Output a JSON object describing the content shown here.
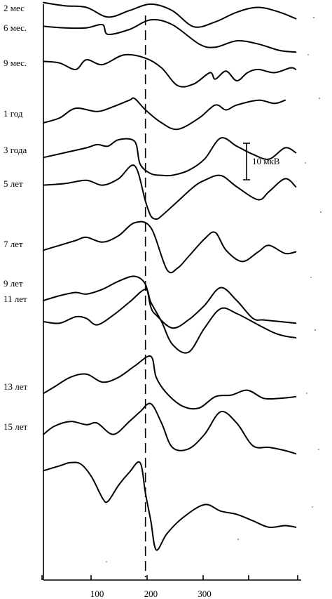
{
  "chart_data": {
    "type": "line",
    "title": "",
    "xlabel": "",
    "ylabel": "",
    "x_range": [
      0,
      480
    ],
    "x_ticks": [
      100,
      200,
      300
    ],
    "x_tick_labels": [
      "100",
      "200",
      "300"
    ],
    "reference_line_x": 190,
    "scale_bar": {
      "label": "10 мкВ",
      "value": 10
    },
    "grid": false,
    "legend": "none",
    "stroke_color": "#000000",
    "series": [
      {
        "name": "2 мес",
        "label": "2 мес",
        "x": [
          0,
          40,
          80,
          120,
          160,
          200,
          240,
          280,
          320,
          360,
          400,
          440,
          470
        ],
        "y": [
          16,
          12,
          10,
          -2,
          6,
          14,
          6,
          -14,
          -8,
          4,
          10,
          4,
          -4
        ]
      },
      {
        "name": "6 мес.",
        "label": "6 мес.",
        "x": [
          0,
          40,
          80,
          110,
          120,
          160,
          200,
          240,
          290,
          320,
          360,
          400,
          440,
          470
        ],
        "y": [
          4,
          2,
          2,
          6,
          -6,
          0,
          12,
          6,
          -18,
          -22,
          -14,
          -18,
          -26,
          -28
        ]
      },
      {
        "name": "9 мес.",
        "label": "9 мес.",
        "x": [
          0,
          30,
          60,
          80,
          110,
          150,
          190,
          220,
          250,
          280,
          310,
          320,
          340,
          360,
          380,
          400,
          430,
          460,
          470
        ],
        "y": [
          4,
          2,
          -6,
          6,
          0,
          12,
          8,
          -4,
          -26,
          -24,
          -10,
          -18,
          -8,
          -20,
          -10,
          -6,
          -10,
          -4,
          -6
        ]
      },
      {
        "name": "1 год",
        "label": "1 год",
        "x": [
          0,
          30,
          60,
          100,
          130,
          160,
          170,
          190,
          220,
          250,
          290,
          320,
          340,
          360,
          400,
          430,
          450
        ],
        "y": [
          -6,
          0,
          12,
          8,
          14,
          22,
          24,
          10,
          -6,
          -14,
          0,
          16,
          10,
          16,
          22,
          18,
          22
        ]
      },
      {
        "name": "3 года",
        "label": "3 года",
        "x": [
          0,
          40,
          80,
          100,
          120,
          140,
          170,
          180,
          200,
          220,
          240,
          270,
          300,
          330,
          360,
          390,
          420,
          450,
          470
        ],
        "y": [
          -2,
          4,
          10,
          14,
          12,
          20,
          18,
          -10,
          -22,
          -24,
          -24,
          -18,
          -4,
          22,
          12,
          2,
          -4,
          10,
          4
        ]
      },
      {
        "name": "5 лет",
        "label": "5 лет",
        "x": [
          0,
          40,
          80,
          110,
          140,
          170,
          190,
          200,
          210,
          220,
          250,
          280,
          300,
          330,
          360,
          400,
          420,
          450,
          470
        ],
        "y": [
          2,
          4,
          8,
          2,
          10,
          26,
          -18,
          -36,
          -40,
          -36,
          -18,
          0,
          8,
          14,
          0,
          -16,
          -6,
          10,
          0
        ]
      },
      {
        "name": "7 лет",
        "label": "7 лет",
        "x": [
          0,
          30,
          60,
          80,
          110,
          140,
          170,
          200,
          230,
          250,
          270,
          300,
          320,
          340,
          370,
          400,
          420,
          450,
          470
        ],
        "y": [
          -2,
          4,
          10,
          14,
          8,
          16,
          32,
          26,
          -26,
          -24,
          -10,
          12,
          20,
          -2,
          -16,
          -4,
          4,
          -6,
          -4
        ]
      },
      {
        "name": "9 лет",
        "label": "9 лет",
        "x": [
          0,
          30,
          60,
          80,
          110,
          140,
          170,
          190,
          200,
          210,
          240,
          270,
          300,
          330,
          360,
          390,
          410,
          440,
          470
        ],
        "y": [
          0,
          6,
          10,
          8,
          14,
          24,
          30,
          20,
          -8,
          -18,
          -34,
          -24,
          -6,
          16,
          0,
          -22,
          -24,
          -26,
          -28
        ]
      },
      {
        "name": "11 лет",
        "label": "11 лет",
        "x": [
          0,
          30,
          60,
          80,
          100,
          130,
          160,
          190,
          200,
          220,
          240,
          270,
          300,
          330,
          360,
          400,
          430,
          450,
          470
        ],
        "y": [
          0,
          -2,
          6,
          4,
          -4,
          8,
          24,
          40,
          24,
          0,
          -28,
          -38,
          -8,
          16,
          10,
          -4,
          -14,
          -18,
          -20
        ]
      },
      {
        "name": "13 лет",
        "label": "13 лет",
        "x": [
          0,
          20,
          50,
          80,
          110,
          140,
          170,
          200,
          210,
          230,
          260,
          290,
          320,
          350,
          380,
          410,
          440,
          470
        ],
        "y": [
          -2,
          6,
          18,
          22,
          12,
          18,
          32,
          44,
          18,
          -2,
          -18,
          -20,
          -6,
          -4,
          2,
          -8,
          -8,
          -6
        ]
      },
      {
        "name": "15 лет",
        "label": "15 лет",
        "x": [
          0,
          20,
          50,
          80,
          100,
          130,
          160,
          180,
          200,
          220,
          240,
          270,
          300,
          330,
          360,
          390,
          420,
          450,
          470
        ],
        "y": [
          -4,
          6,
          12,
          8,
          10,
          -4,
          12,
          24,
          34,
          10,
          -20,
          -22,
          -4,
          24,
          10,
          -18,
          -20,
          -24,
          -28
        ]
      },
      {
        "name": "",
        "label": "",
        "x": [
          0,
          30,
          50,
          70,
          90,
          110,
          120,
          140,
          160,
          180,
          190,
          200,
          210,
          230,
          260,
          300,
          330,
          360,
          390,
          420,
          450,
          470
        ],
        "y": [
          -2,
          4,
          8,
          6,
          -10,
          -36,
          -40,
          -20,
          -4,
          8,
          -30,
          -64,
          -100,
          -80,
          -60,
          -44,
          -52,
          -56,
          -64,
          -72,
          -70,
          -72
        ]
      }
    ]
  }
}
